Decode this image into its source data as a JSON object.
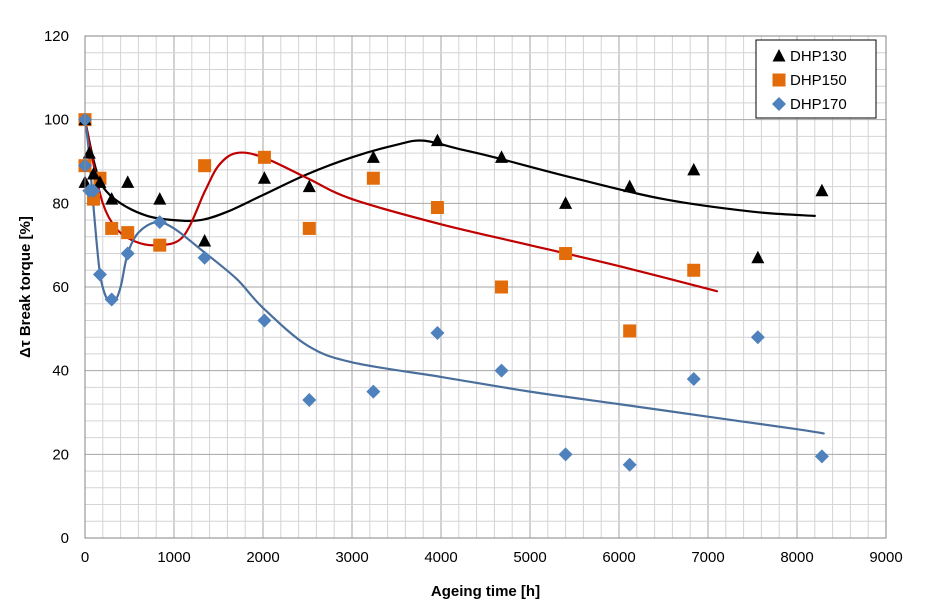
{
  "chart_data": {
    "type": "scatter",
    "xlabel": "Ageing time [h]",
    "ylabel": "Δτ Break torque [%]",
    "xlim": [
      0,
      9000
    ],
    "ylim": [
      0,
      120
    ],
    "xticks": [
      0,
      1000,
      2000,
      3000,
      4000,
      5000,
      6000,
      7000,
      8000,
      9000
    ],
    "yticks": [
      0,
      20,
      40,
      60,
      80,
      100,
      120
    ],
    "grid": true,
    "legend": "top-right",
    "series": [
      {
        "name": "DHP130",
        "marker": "triangle",
        "color": "#000000",
        "points": [
          [
            0,
            100
          ],
          [
            0,
            85
          ],
          [
            48,
            92
          ],
          [
            96,
            87
          ],
          [
            168,
            85
          ],
          [
            300,
            81
          ],
          [
            480,
            85
          ],
          [
            840,
            81
          ],
          [
            1344,
            71
          ],
          [
            2016,
            86
          ],
          [
            2520,
            84
          ],
          [
            3240,
            91
          ],
          [
            3960,
            95
          ],
          [
            4680,
            91
          ],
          [
            5400,
            80
          ],
          [
            6120,
            84
          ],
          [
            6840,
            88
          ],
          [
            7560,
            67
          ],
          [
            8280,
            83
          ]
        ],
        "trend": [
          [
            0,
            100
          ],
          [
            100,
            90
          ],
          [
            200,
            84
          ],
          [
            400,
            80
          ],
          [
            700,
            77
          ],
          [
            1000,
            76
          ],
          [
            1300,
            76
          ],
          [
            1600,
            78
          ],
          [
            2000,
            82
          ],
          [
            2500,
            87
          ],
          [
            3000,
            91
          ],
          [
            3500,
            94
          ],
          [
            3800,
            95
          ],
          [
            4200,
            93
          ],
          [
            4600,
            91
          ],
          [
            5500,
            86
          ],
          [
            6500,
            81
          ],
          [
            7500,
            78
          ],
          [
            8200,
            77
          ]
        ]
      },
      {
        "name": "DHP150",
        "marker": "square",
        "color": "#e36c0a",
        "points": [
          [
            0,
            100
          ],
          [
            0,
            89
          ],
          [
            96,
            81
          ],
          [
            168,
            86
          ],
          [
            300,
            74
          ],
          [
            480,
            73
          ],
          [
            840,
            70
          ],
          [
            1344,
            89
          ],
          [
            2016,
            91
          ],
          [
            2520,
            74
          ],
          [
            3240,
            86
          ],
          [
            3960,
            79
          ],
          [
            4680,
            60
          ],
          [
            5400,
            68
          ],
          [
            6120,
            49.5
          ],
          [
            6840,
            64
          ]
        ],
        "trend": [
          [
            0,
            100
          ],
          [
            80,
            91
          ],
          [
            200,
            80
          ],
          [
            350,
            74
          ],
          [
            550,
            71
          ],
          [
            800,
            70
          ],
          [
            1100,
            72
          ],
          [
            1350,
            83
          ],
          [
            1500,
            89
          ],
          [
            1700,
            92
          ],
          [
            2000,
            91
          ],
          [
            2500,
            86
          ],
          [
            3000,
            81
          ],
          [
            4000,
            75
          ],
          [
            5000,
            70
          ],
          [
            6000,
            65
          ],
          [
            7100,
            59
          ]
        ]
      },
      {
        "name": "DHP170",
        "marker": "diamond",
        "color": "#4f81bd",
        "points": [
          [
            0,
            100
          ],
          [
            0,
            89
          ],
          [
            48,
            83
          ],
          [
            96,
            83
          ],
          [
            168,
            63
          ],
          [
            300,
            57
          ],
          [
            480,
            68
          ],
          [
            840,
            75.5
          ],
          [
            1344,
            67
          ],
          [
            2016,
            52
          ],
          [
            2520,
            33
          ],
          [
            3240,
            35
          ],
          [
            3960,
            49
          ],
          [
            4680,
            40
          ],
          [
            5400,
            20
          ],
          [
            6120,
            17.5
          ],
          [
            6840,
            38
          ],
          [
            7560,
            48
          ],
          [
            8280,
            19.5
          ]
        ],
        "trend": [
          [
            0,
            100
          ],
          [
            40,
            93
          ],
          [
            100,
            78
          ],
          [
            170,
            63
          ],
          [
            250,
            57
          ],
          [
            330,
            56.5
          ],
          [
            400,
            60
          ],
          [
            480,
            68
          ],
          [
            600,
            73
          ],
          [
            800,
            75.5
          ],
          [
            1000,
            74
          ],
          [
            1300,
            69
          ],
          [
            1700,
            62
          ],
          [
            2000,
            55
          ],
          [
            2500,
            46
          ],
          [
            3000,
            42
          ],
          [
            4000,
            38.5
          ],
          [
            5000,
            35
          ],
          [
            6000,
            32
          ],
          [
            7000,
            29
          ],
          [
            8000,
            26
          ],
          [
            8300,
            25
          ]
        ]
      }
    ]
  }
}
